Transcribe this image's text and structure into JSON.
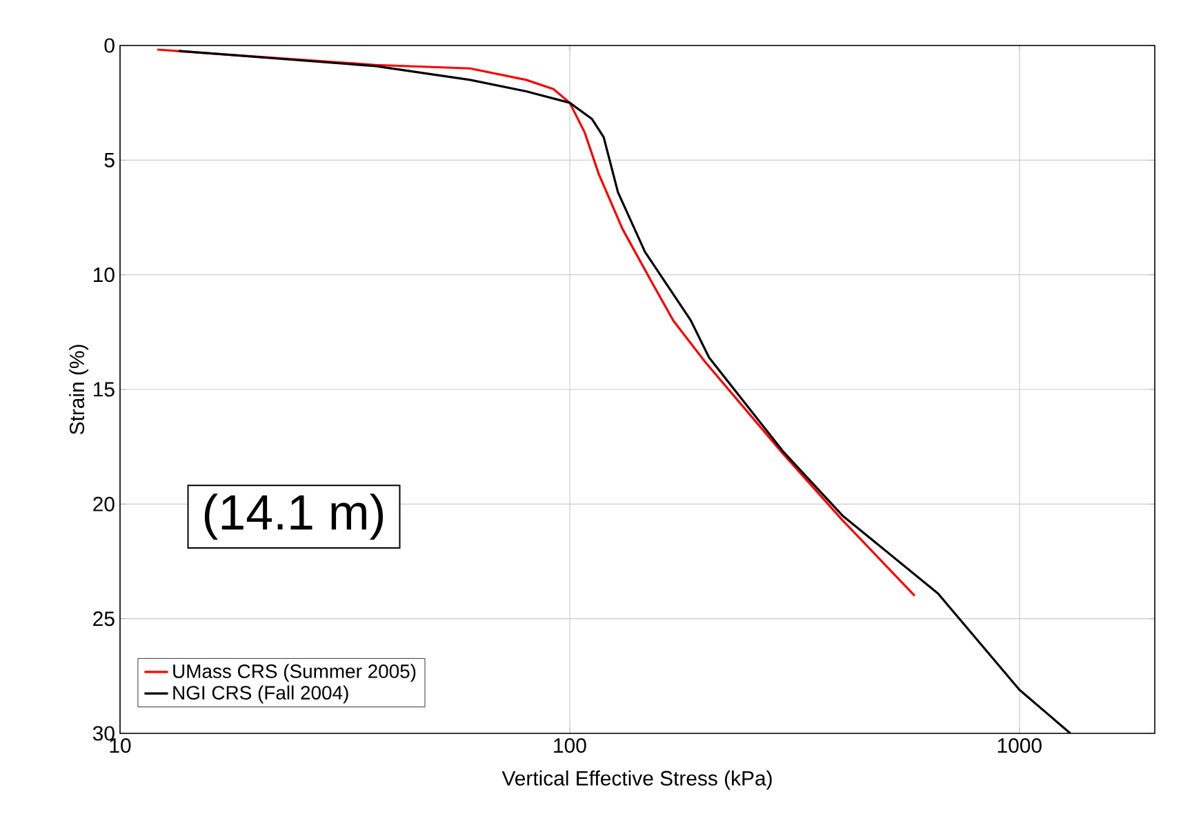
{
  "chart_data": {
    "type": "line",
    "xlabel": "Vertical Effective Stress (kPa)",
    "ylabel": "Strain (%)",
    "log": "x",
    "xlim": [
      10,
      2000
    ],
    "ylim": [
      30,
      0
    ],
    "xticks": [
      10,
      100,
      1000
    ],
    "yticks": [
      0,
      5,
      10,
      15,
      20,
      25,
      30
    ],
    "grid": true,
    "legend": "bottom left",
    "marker": "none",
    "line_style": "solid",
    "annotations": [
      "(14.1 m)"
    ],
    "series": [
      {
        "name": "UMass CRS (Summer 2005)",
        "color": "#ff0000",
        "x": [
          12.1,
          37,
          60,
          80,
          92,
          100,
          108,
          116,
          131,
          151,
          170,
          200,
          298,
          404,
          585
        ],
        "values": [
          0.18,
          0.85,
          1.0,
          1.5,
          1.9,
          2.5,
          3.8,
          5.6,
          8.0,
          10.2,
          12.0,
          13.8,
          17.8,
          20.7,
          24.0
        ]
      },
      {
        "name": "NGI CRS (Fall 2004)",
        "color": "#000000",
        "x": [
          13.5,
          37,
          60,
          80,
          100,
          112,
          119,
          128,
          147,
          186,
          204,
          298,
          404,
          659,
          1000,
          1298
        ],
        "values": [
          0.24,
          0.9,
          1.5,
          2.0,
          2.5,
          3.2,
          4.0,
          6.4,
          9.0,
          12.0,
          13.6,
          17.7,
          20.5,
          23.9,
          28.1,
          30.0
        ]
      }
    ]
  }
}
